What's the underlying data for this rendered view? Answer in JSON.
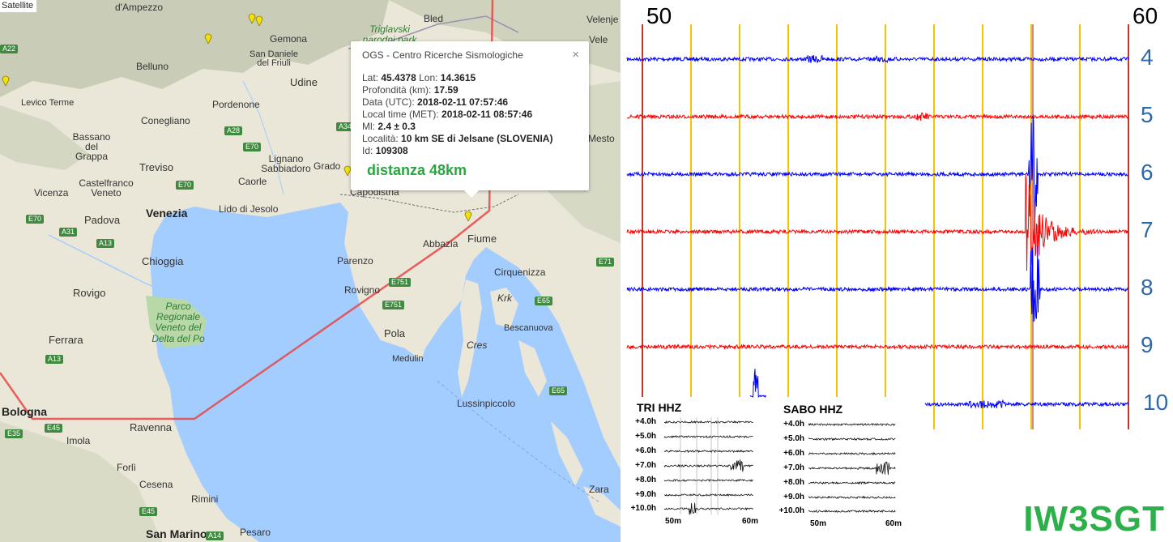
{
  "map": {
    "satellite_label": "Satellite",
    "cities": [
      {
        "name": "d'Ampezzo"
      },
      {
        "name": "Bled"
      },
      {
        "name": "Velenje"
      },
      {
        "name": "Gemona"
      },
      {
        "name": "Belluno"
      },
      {
        "name": "San Daniele del Friuli"
      },
      {
        "name": "Udine"
      },
      {
        "name": "Levico Terme"
      },
      {
        "name": "Pordenone"
      },
      {
        "name": "Conegliano"
      },
      {
        "name": "Bassano del Grappa"
      },
      {
        "name": "Treviso"
      },
      {
        "name": "Lignano Sabbiadoro"
      },
      {
        "name": "Caorle"
      },
      {
        "name": "Grado"
      },
      {
        "name": "Castelfranco Veneto"
      },
      {
        "name": "Vicenza"
      },
      {
        "name": "Padova"
      },
      {
        "name": "Venezia"
      },
      {
        "name": "Lido di Jesolo"
      },
      {
        "name": "Capodistria"
      },
      {
        "name": "Chioggia"
      },
      {
        "name": "Abbazia"
      },
      {
        "name": "Fiume"
      },
      {
        "name": "Parenzo"
      },
      {
        "name": "Rovigno"
      },
      {
        "name": "Rovigo"
      },
      {
        "name": "Cirquenizza"
      },
      {
        "name": "Krk"
      },
      {
        "name": "Bescanuova"
      },
      {
        "name": "Pola"
      },
      {
        "name": "Medulin"
      },
      {
        "name": "Cres"
      },
      {
        "name": "Ferrara"
      },
      {
        "name": "Bologna"
      },
      {
        "name": "Lussinpiccolo"
      },
      {
        "name": "Ravenna"
      },
      {
        "name": "Imola"
      },
      {
        "name": "Forlì"
      },
      {
        "name": "Cesena"
      },
      {
        "name": "Rimini"
      },
      {
        "name": "San Marino"
      },
      {
        "name": "Pesaro"
      },
      {
        "name": "Zara"
      },
      {
        "name": "Mesto"
      },
      {
        "name": "Vele"
      }
    ],
    "park_labels": [
      "Triglavski narodni park",
      "Parco Regionale Veneto del Delta del Po"
    ],
    "roads": [
      "A22",
      "A28",
      "E70",
      "A34",
      "E70",
      "E70",
      "A31",
      "A13",
      "E751",
      "E751",
      "E65",
      "E71",
      "E65",
      "A13",
      "E45",
      "E35",
      "E45",
      "A14"
    ],
    "popup": {
      "source": "OGS - Centro Ricerche Sismologiche",
      "close": "×",
      "lat_label": "Lat:",
      "lat": "45.4378",
      "lon_label": "Lon:",
      "lon": "14.3615",
      "depth_label": "Profondità (km):",
      "depth": "17.59",
      "utc_label": "Data (UTC):",
      "utc": "2018-02-11 07:57:46",
      "local_label": "Local time (MET):",
      "local": "2018-02-11 08:57:46",
      "ml_label": "Ml:",
      "ml": "2.4 ± 0.3",
      "loc_label": "Località:",
      "loc": "10 km SE di Jelsane (SLOVENIA)",
      "id_label": "Id:",
      "id": "109308",
      "distance": "distanza 48km"
    }
  },
  "seismogram": {
    "minute_start": "50",
    "minute_end": "60",
    "rows": [
      {
        "hour": "4",
        "color": "#0000ff"
      },
      {
        "hour": "5",
        "color": "#ff0000"
      },
      {
        "hour": "6",
        "color": "#0000ff"
      },
      {
        "hour": "7",
        "color": "#ff0000"
      },
      {
        "hour": "8",
        "color": "#0000ff"
      },
      {
        "hour": "9",
        "color": "#ff0000"
      },
      {
        "hour": "10",
        "color": "#0000ff"
      }
    ],
    "insets": [
      {
        "title": "TRI HHZ",
        "rows": [
          "+4.0h",
          "+5.0h",
          "+6.0h",
          "+7.0h",
          "+8.0h",
          "+9.0h",
          "+10.0h"
        ],
        "x_start": "50m",
        "x_end": "60m"
      },
      {
        "title": "SABO HHZ",
        "rows": [
          "+4.0h",
          "+5.0h",
          "+6.0h",
          "+7.0h",
          "+8.0h",
          "+9.0h",
          "+10.0h"
        ],
        "x_start": "50m",
        "x_end": "60m"
      }
    ],
    "callsign": "IW3SGT"
  }
}
